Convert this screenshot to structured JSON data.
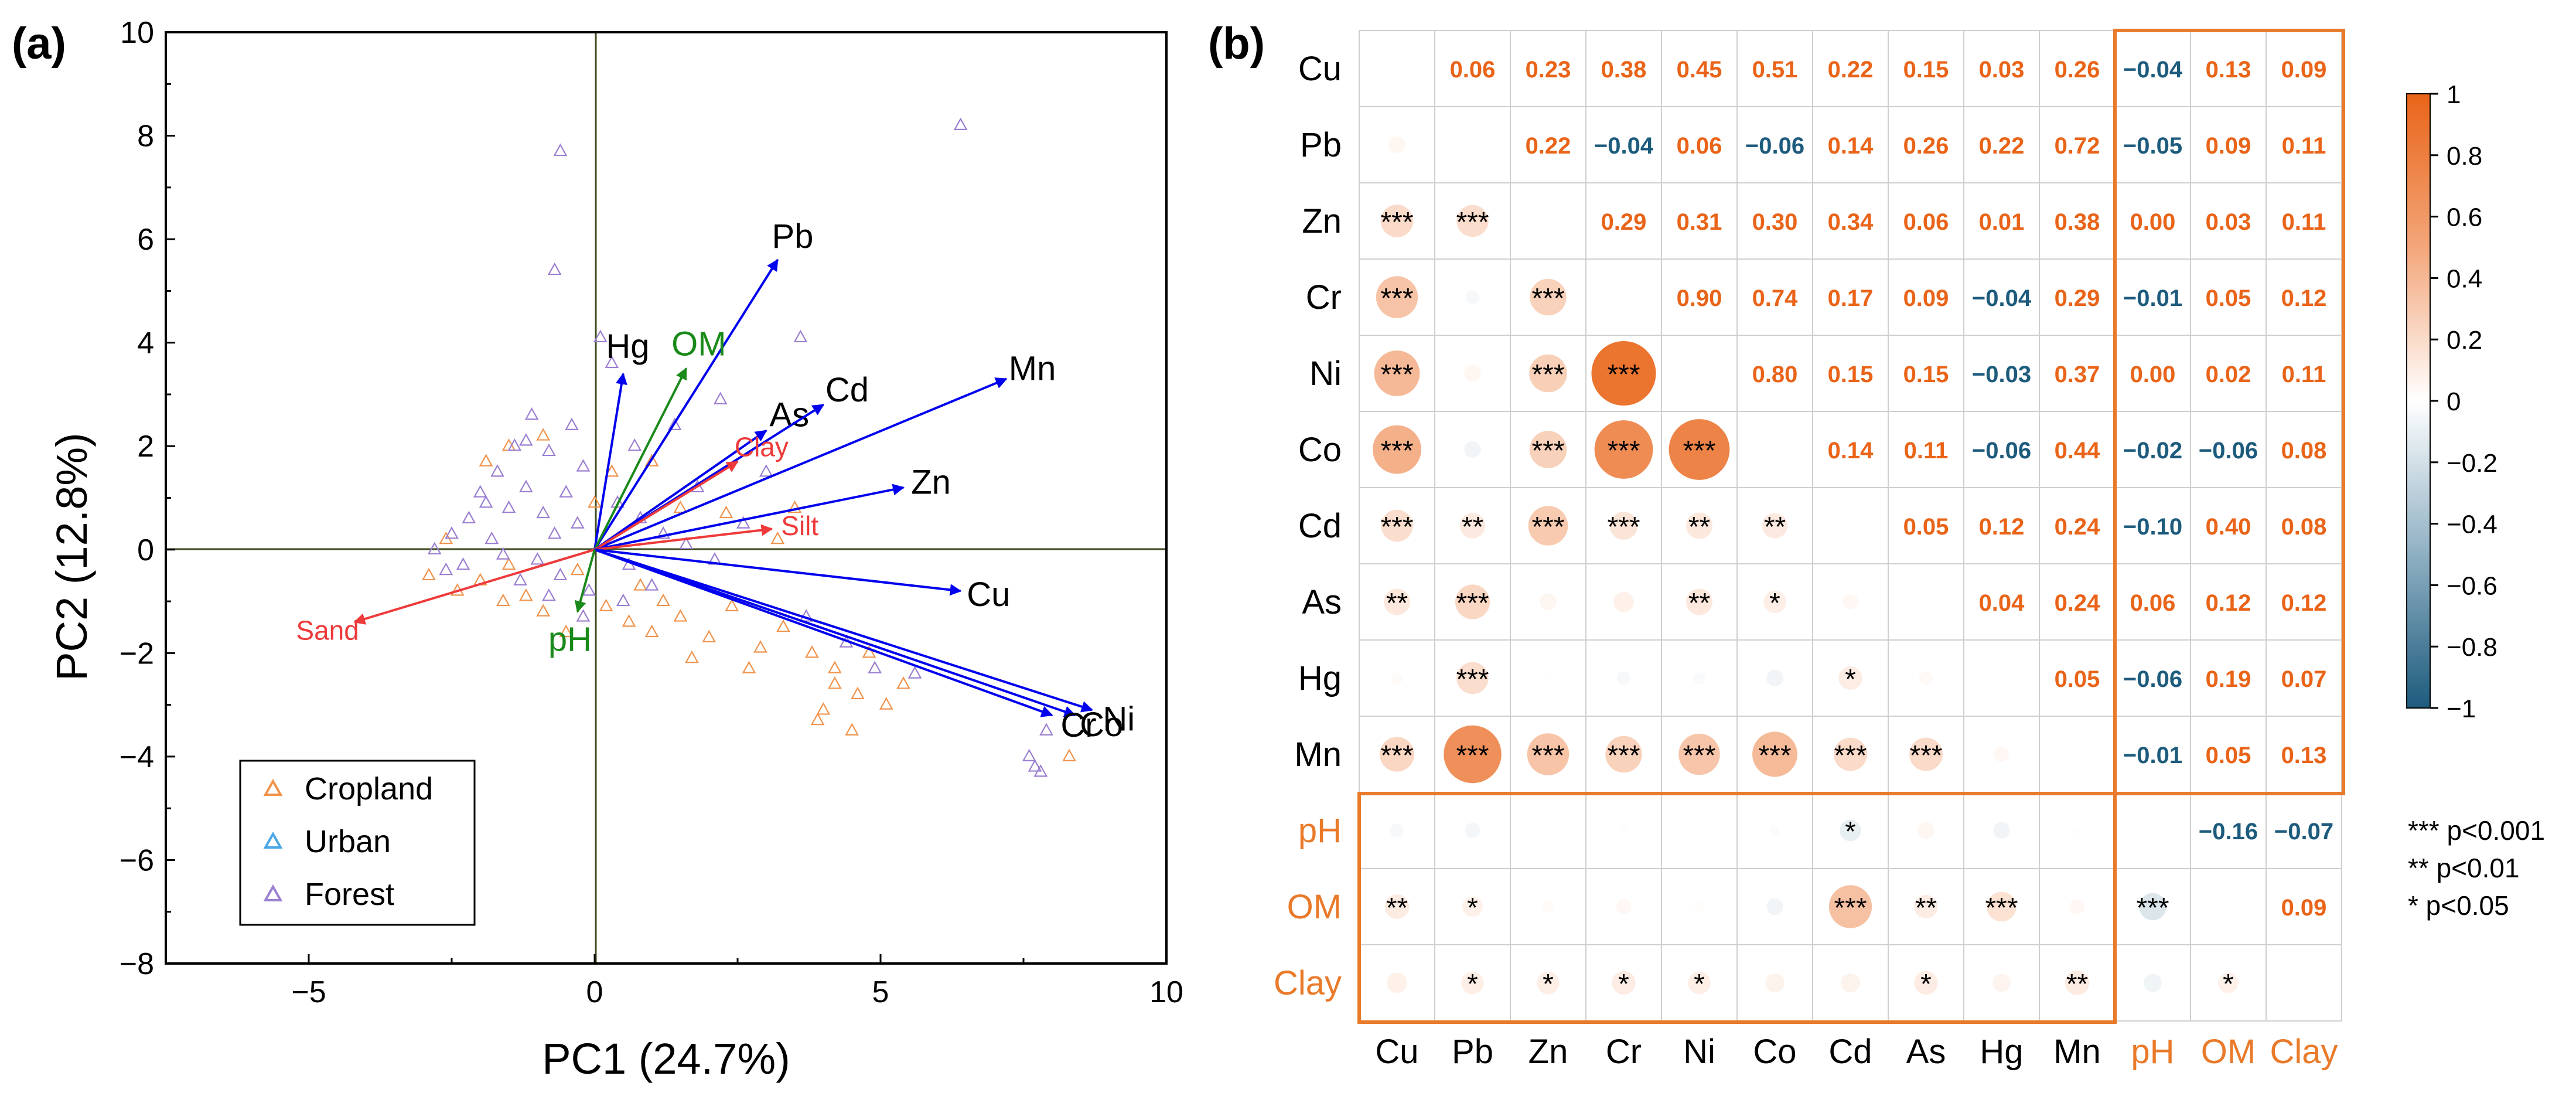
{
  "colors": {
    "loading_arrow": "#0000ee",
    "soil_arrow": "#ee3a3a",
    "chem_arrow": "#1a8a1a",
    "cropland": "#f0934c",
    "urban": "#4aa6e6",
    "forest": "#9b7fd1",
    "positive": "#e96418",
    "negative": "#1d5b7d",
    "box": "#e97a2a"
  },
  "chart_data": [
    {
      "type": "scatter",
      "panel_label": "(a)",
      "title": "",
      "xlabel": "PC1 (24.7%)",
      "ylabel": "PC2 (12.8%)",
      "xlim": [
        -7.5,
        10
      ],
      "ylim": [
        -8,
        10
      ],
      "x_ticks": [
        -5,
        0,
        5,
        10
      ],
      "y_ticks": [
        -8,
        -6,
        -4,
        -2,
        0,
        2,
        4,
        6,
        8,
        10
      ],
      "x_tick_labels": [
        "−5",
        "0",
        "5",
        "10"
      ],
      "y_tick_labels": [
        "−8",
        "−6",
        "−4",
        "−2",
        "0",
        "2",
        "4",
        "6",
        "8",
        "10"
      ],
      "legend": {
        "placement": "bottom-left",
        "entries": [
          "Cropland",
          "Urban",
          "Forest"
        ]
      },
      "loadings": [
        {
          "label": "Pb",
          "group": "metal",
          "x": 3.2,
          "y": 5.6
        },
        {
          "label": "Hg",
          "group": "metal",
          "x": 0.5,
          "y": 3.4
        },
        {
          "label": "OM",
          "group": "soil_chem",
          "x": 1.6,
          "y": 3.5
        },
        {
          "label": "As",
          "group": "metal",
          "x": 3.0,
          "y": 2.3
        },
        {
          "label": "Cd",
          "group": "metal",
          "x": 4.0,
          "y": 2.8
        },
        {
          "label": "Mn",
          "group": "metal",
          "x": 7.2,
          "y": 3.3
        },
        {
          "label": "Clay",
          "group": "soil_texture",
          "x": 2.5,
          "y": 1.7
        },
        {
          "label": "Zn",
          "group": "metal",
          "x": 5.4,
          "y": 1.2
        },
        {
          "label": "Silt",
          "group": "soil_texture",
          "x": 3.1,
          "y": 0.4
        },
        {
          "label": "Cu",
          "group": "metal",
          "x": 6.4,
          "y": -0.8
        },
        {
          "label": "Ni",
          "group": "metal",
          "x": 8.7,
          "y": -3.1
        },
        {
          "label": "Co",
          "group": "metal",
          "x": 8.4,
          "y": -3.2
        },
        {
          "label": "Cr",
          "group": "metal",
          "x": 8.0,
          "y": -3.2
        },
        {
          "label": "Sand",
          "group": "soil_texture",
          "x": -4.2,
          "y": -1.4
        },
        {
          "label": "pH",
          "group": "soil_chem",
          "x": -0.3,
          "y": -1.2
        }
      ],
      "scores": {
        "Forest": [
          [
            -0.6,
            7.7
          ],
          [
            -0.7,
            5.4
          ],
          [
            6.4,
            8.2
          ],
          [
            0.3,
            3.6
          ],
          [
            0.1,
            4.1
          ],
          [
            -1.1,
            2.6
          ],
          [
            -1.4,
            2.0
          ],
          [
            -1.2,
            2.1
          ],
          [
            -0.8,
            1.9
          ],
          [
            -1.7,
            1.5
          ],
          [
            -2.0,
            1.1
          ],
          [
            -2.2,
            0.6
          ],
          [
            -2.5,
            0.3
          ],
          [
            -2.3,
            -0.3
          ],
          [
            -1.8,
            0.2
          ],
          [
            -1.5,
            0.8
          ],
          [
            -1.2,
            1.2
          ],
          [
            -0.9,
            0.7
          ],
          [
            -0.7,
            0.3
          ],
          [
            -0.5,
            1.1
          ],
          [
            -0.3,
            0.5
          ],
          [
            -1.0,
            -0.2
          ],
          [
            -0.6,
            -0.5
          ],
          [
            -1.3,
            -0.6
          ],
          [
            -2.6,
            -0.4
          ],
          [
            -2.8,
            0.0
          ],
          [
            -1.6,
            -0.1
          ],
          [
            -0.2,
            1.6
          ],
          [
            0.4,
            0.9
          ],
          [
            0.8,
            0.6
          ],
          [
            1.2,
            0.3
          ],
          [
            1.6,
            0.1
          ],
          [
            2.1,
            -0.2
          ],
          [
            0.6,
            -0.3
          ],
          [
            1.0,
            -0.7
          ],
          [
            0.5,
            -1.0
          ],
          [
            -0.1,
            -0.8
          ],
          [
            2.6,
            0.5
          ],
          [
            3.0,
            1.5
          ],
          [
            3.6,
            4.1
          ],
          [
            2.2,
            2.9
          ],
          [
            1.4,
            2.4
          ],
          [
            7.8,
            -4.3
          ],
          [
            7.7,
            -4.2
          ],
          [
            7.6,
            -4.0
          ],
          [
            7.9,
            -3.5
          ],
          [
            4.4,
            -1.8
          ],
          [
            4.9,
            -2.3
          ],
          [
            5.6,
            -2.4
          ],
          [
            3.7,
            -1.3
          ],
          [
            0.7,
            2.0
          ],
          [
            -0.4,
            2.4
          ],
          [
            -1.9,
            0.9
          ],
          [
            -0.8,
            -0.9
          ],
          [
            -0.2,
            -1.3
          ],
          [
            1.8,
            1.2
          ]
        ],
        "Cropland": [
          [
            -2.9,
            -0.5
          ],
          [
            -2.4,
            -0.8
          ],
          [
            -2.0,
            -0.6
          ],
          [
            -1.6,
            -1.0
          ],
          [
            -1.2,
            -0.9
          ],
          [
            -0.9,
            -1.2
          ],
          [
            -0.5,
            -1.6
          ],
          [
            0.2,
            -1.1
          ],
          [
            0.6,
            -1.4
          ],
          [
            1.0,
            -1.6
          ],
          [
            1.5,
            -1.3
          ],
          [
            2.0,
            -1.7
          ],
          [
            2.4,
            -1.1
          ],
          [
            2.9,
            -1.9
          ],
          [
            3.3,
            -1.5
          ],
          [
            3.8,
            -2.0
          ],
          [
            4.2,
            -2.3
          ],
          [
            4.6,
            -2.8
          ],
          [
            4.0,
            -3.1
          ],
          [
            3.9,
            -3.3
          ],
          [
            4.5,
            -3.5
          ],
          [
            4.2,
            -2.6
          ],
          [
            5.1,
            -3.0
          ],
          [
            5.4,
            -2.6
          ],
          [
            4.8,
            -2.0
          ],
          [
            8.3,
            -4.0
          ],
          [
            2.7,
            -2.3
          ],
          [
            1.7,
            -2.1
          ],
          [
            1.2,
            -1.0
          ],
          [
            0.8,
            -0.7
          ],
          [
            -0.3,
            -0.4
          ],
          [
            -1.5,
            -0.3
          ],
          [
            -2.6,
            0.2
          ],
          [
            -1.9,
            1.7
          ],
          [
            -1.5,
            2.0
          ],
          [
            -0.9,
            2.2
          ],
          [
            0.3,
            1.5
          ],
          [
            1.0,
            1.7
          ],
          [
            1.5,
            0.8
          ],
          [
            2.3,
            0.7
          ],
          [
            3.2,
            0.2
          ],
          [
            3.5,
            0.8
          ],
          [
            0.0,
            0.9
          ]
        ],
        "Urban": []
      }
    },
    {
      "type": "heatmap",
      "panel_label": "(b)",
      "title": "",
      "row_labels": [
        "Cu",
        "Pb",
        "Zn",
        "Cr",
        "Ni",
        "Co",
        "Cd",
        "As",
        "Hg",
        "Mn",
        "pH",
        "OM",
        "Clay"
      ],
      "col_labels": [
        "Cu",
        "Pb",
        "Zn",
        "Cr",
        "Ni",
        "Co",
        "Cd",
        "As",
        "Hg",
        "Mn",
        "pH",
        "OM",
        "Clay"
      ],
      "highlighted_labels": [
        "pH",
        "OM",
        "Clay"
      ],
      "upper_values": [
        [
          null,
          "0.06",
          "0.23",
          "0.38",
          "0.45",
          "0.51",
          "0.22",
          "0.15",
          "0.03",
          "0.26",
          "−0.04",
          "0.13",
          "0.09"
        ],
        [
          null,
          null,
          "0.22",
          "−0.04",
          "0.06",
          "−0.06",
          "0.14",
          "0.26",
          "0.22",
          "0.72",
          "−0.05",
          "0.09",
          "0.11"
        ],
        [
          null,
          null,
          null,
          "0.29",
          "0.31",
          "0.30",
          "0.34",
          "0.06",
          "0.01",
          "0.38",
          "0.00",
          "0.03",
          "0.11"
        ],
        [
          null,
          null,
          null,
          null,
          "0.90",
          "0.74",
          "0.17",
          "0.09",
          "−0.04",
          "0.29",
          "−0.01",
          "0.05",
          "0.12"
        ],
        [
          null,
          null,
          null,
          null,
          null,
          "0.80",
          "0.15",
          "0.15",
          "−0.03",
          "0.37",
          "0.00",
          "0.02",
          "0.11"
        ],
        [
          null,
          null,
          null,
          null,
          null,
          null,
          "0.14",
          "0.11",
          "−0.06",
          "0.44",
          "−0.02",
          "−0.06",
          "0.08"
        ],
        [
          null,
          null,
          null,
          null,
          null,
          null,
          null,
          "0.05",
          "0.12",
          "0.24",
          "−0.10",
          "0.40",
          "0.08"
        ],
        [
          null,
          null,
          null,
          null,
          null,
          null,
          null,
          null,
          "0.04",
          "0.24",
          "0.06",
          "0.12",
          "0.12"
        ],
        [
          null,
          null,
          null,
          null,
          null,
          null,
          null,
          null,
          null,
          "0.05",
          "−0.06",
          "0.19",
          "0.07"
        ],
        [
          null,
          null,
          null,
          null,
          null,
          null,
          null,
          null,
          null,
          null,
          "−0.01",
          "0.05",
          "0.13"
        ],
        [
          null,
          null,
          null,
          null,
          null,
          null,
          null,
          null,
          null,
          null,
          null,
          "−0.16",
          "−0.07"
        ],
        [
          null,
          null,
          null,
          null,
          null,
          null,
          null,
          null,
          null,
          null,
          null,
          null,
          "0.09"
        ],
        [
          null,
          null,
          null,
          null,
          null,
          null,
          null,
          null,
          null,
          null,
          null,
          null,
          null
        ]
      ],
      "significance": [
        [
          "",
          "",
          "",
          "",
          "",
          "",
          "",
          "",
          "",
          "",
          "",
          "",
          ""
        ],
        [
          "",
          "",
          "",
          "",
          "",
          "",
          "",
          "",
          "",
          "",
          "",
          "",
          ""
        ],
        [
          "***",
          "***",
          "",
          "",
          "",
          "",
          "",
          "",
          "",
          "",
          "",
          "",
          ""
        ],
        [
          "***",
          "",
          "***",
          "",
          "",
          "",
          "",
          "",
          "",
          "",
          "",
          "",
          ""
        ],
        [
          "***",
          "",
          "***",
          "***",
          "",
          "",
          "",
          "",
          "",
          "",
          "",
          "",
          ""
        ],
        [
          "***",
          "",
          "***",
          "***",
          "***",
          "",
          "",
          "",
          "",
          "",
          "",
          "",
          ""
        ],
        [
          "***",
          "**",
          "***",
          "***",
          "**",
          "**",
          "",
          "",
          "",
          "",
          "",
          "",
          ""
        ],
        [
          "**",
          "***",
          "",
          "",
          "**",
          "*",
          "",
          "",
          "",
          "",
          "",
          "",
          ""
        ],
        [
          "",
          "***",
          "",
          "",
          "",
          "",
          "*",
          "",
          "",
          "",
          "",
          "",
          ""
        ],
        [
          "***",
          "***",
          "***",
          "***",
          "***",
          "***",
          "***",
          "***",
          "",
          "",
          "",
          "",
          ""
        ],
        [
          "",
          "",
          "",
          "",
          "",
          "",
          "*",
          "",
          "",
          "",
          "",
          "",
          ""
        ],
        [
          "**",
          "*",
          "",
          "",
          "",
          "",
          "***",
          "**",
          "***",
          "",
          "***",
          "",
          ""
        ],
        [
          "",
          "*",
          "*",
          "*",
          "*",
          "",
          "",
          "*",
          "",
          "**",
          "",
          "*",
          ""
        ]
      ],
      "colorbar": {
        "min": -1,
        "max": 1,
        "ticks": [
          1,
          0.8,
          0.6,
          0.4,
          0.2,
          0,
          -0.2,
          -0.4,
          -0.6,
          -0.8,
          -1
        ],
        "tick_labels": [
          "1",
          "0.8",
          "0.6",
          "0.4",
          "0.2",
          "0",
          "−0.2",
          "−0.4",
          "−0.6",
          "−0.8",
          "−1"
        ]
      },
      "significance_legend": [
        "*** p<0.001",
        "** p<0.01",
        "* p<0.05"
      ]
    }
  ]
}
